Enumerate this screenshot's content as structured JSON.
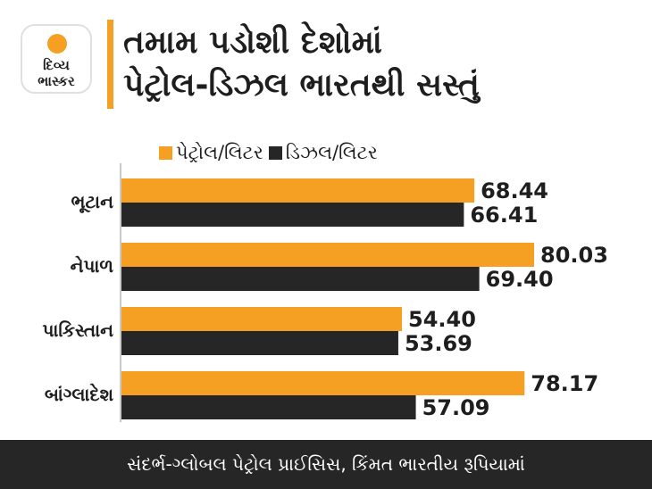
{
  "brand": {
    "line1": "દિવ્ય",
    "line2": "ભાસ્કર",
    "colors": {
      "accent": "#f6a023",
      "dark": "#262626"
    }
  },
  "title": {
    "line1": "તમામ પડોશી દેશોમાં",
    "line2": "પેટ્રોલ-ડિઝલ ભારતથી સસ્તું"
  },
  "footer": "સંદર્ભ-ગ્લોબલ પેટ્રોલ પ્રાઈસિસ, કિંમત ભારતીય રૂપિયામાં",
  "chart_data": {
    "type": "bar",
    "orientation": "horizontal",
    "categories": [
      "ભૂટાન",
      "નેપાળ",
      "પાકિસ્તાન",
      "બાંગ્લાદેશ"
    ],
    "series": [
      {
        "name": "પેટ્રોલ/લિટર",
        "color": "#f6a023",
        "values": [
          68.44,
          80.03,
          54.4,
          78.17
        ],
        "labels": [
          "68.44",
          "80.03",
          "54.40",
          "78.17"
        ]
      },
      {
        "name": "ડિઝલ/લિટર",
        "color": "#262626",
        "values": [
          66.41,
          69.4,
          53.69,
          57.09
        ],
        "labels": [
          "66.41",
          "69.40",
          "53.69",
          "57.09"
        ]
      }
    ],
    "xlim": [
      0,
      80.03
    ],
    "legend": "top",
    "grid": false
  }
}
